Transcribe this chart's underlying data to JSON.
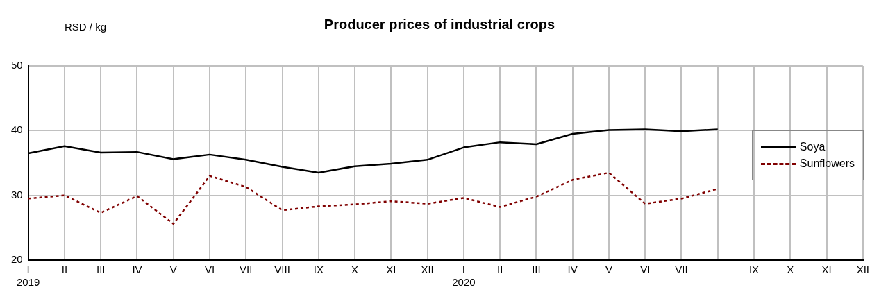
{
  "chart_data": {
    "type": "line",
    "title": "Producer prices of industrial crops",
    "ylabel": "RSD / kg",
    "categories": [
      "I\n2019",
      "II",
      "III",
      "IV",
      "V",
      "VI",
      "VII",
      "VIII",
      "IX",
      "X",
      "XI",
      "XII",
      "I\n2020",
      "II",
      "III",
      "IV",
      "V",
      "VI",
      "VII",
      null,
      "IX",
      "X",
      "XI",
      "XII"
    ],
    "series": [
      {
        "name": "Soya",
        "color": "#000000",
        "line_style": "solid",
        "values": [
          36.5,
          37.6,
          36.6,
          36.7,
          35.6,
          36.3,
          35.5,
          34.4,
          33.5,
          34.5,
          34.9,
          35.5,
          37.4,
          38.2,
          37.9,
          39.5,
          40.1,
          40.2,
          39.9,
          40.2,
          null,
          null,
          null,
          null
        ]
      },
      {
        "name": "Sunflowers",
        "color": "#800000",
        "line_style": "dotted",
        "values": [
          29.5,
          30.0,
          27.3,
          29.9,
          25.6,
          33.0,
          31.3,
          27.7,
          28.3,
          28.6,
          29.1,
          28.7,
          29.6,
          28.2,
          29.8,
          32.4,
          33.5,
          28.7,
          29.5,
          31.0,
          null,
          null,
          null,
          null
        ]
      }
    ],
    "ylim": [
      20,
      50
    ],
    "yticks": [
      20,
      30,
      40,
      50
    ],
    "grid": true,
    "legend": "right",
    "marker": "none"
  }
}
